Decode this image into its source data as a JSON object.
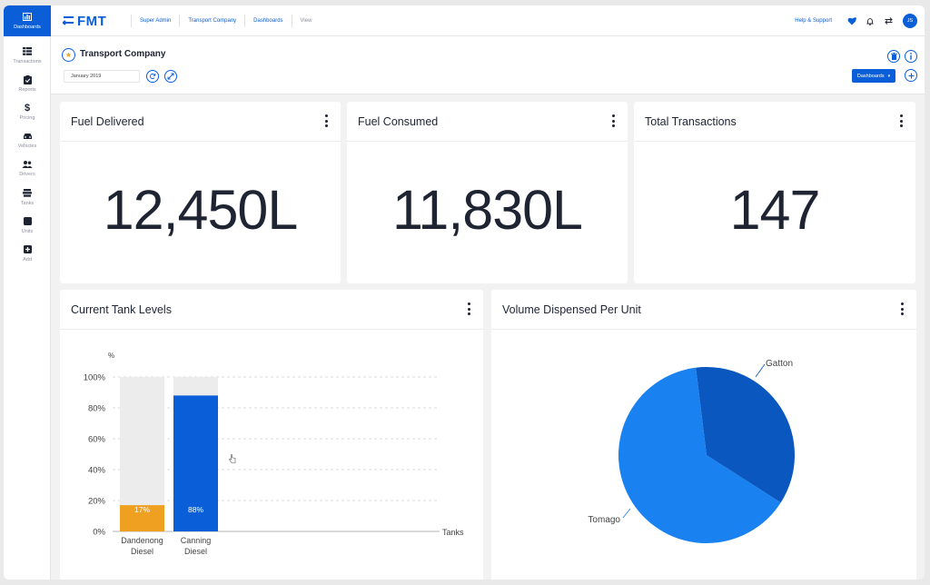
{
  "sidebar": {
    "items": [
      {
        "label": "Dashboards",
        "icon": "bar-chart-icon"
      },
      {
        "label": "Transactions",
        "icon": "list-icon"
      },
      {
        "label": "Reports",
        "icon": "clipboard-icon"
      },
      {
        "label": "Pricing",
        "icon": "dollar-icon"
      },
      {
        "label": "Vehicles",
        "icon": "car-icon"
      },
      {
        "label": "Drivers",
        "icon": "users-icon"
      },
      {
        "label": "Tanks",
        "icon": "layers-icon"
      },
      {
        "label": "Units",
        "icon": "square-icon"
      },
      {
        "label": "Add",
        "icon": "plus-square-icon"
      }
    ]
  },
  "topbar": {
    "logo": "FMT",
    "breadcrumbs": [
      "Super Admin",
      "Transport Company",
      "Dashboards",
      "View"
    ],
    "help": "Help & Support",
    "avatar": "JS"
  },
  "page": {
    "title": "Transport Company",
    "date": "January 2019",
    "dashboards_button": "Dashboards"
  },
  "cards": {
    "fuel_delivered": {
      "title": "Fuel Delivered",
      "value": "12,450L"
    },
    "fuel_consumed": {
      "title": "Fuel Consumed",
      "value": "11,830L"
    },
    "total_transactions": {
      "title": "Total Transactions",
      "value": "147"
    },
    "tank_levels": {
      "title": "Current Tank Levels"
    },
    "volume_per_unit": {
      "title": "Volume Dispensed Per Unit"
    }
  },
  "colors": {
    "accent": "#0a5fd8",
    "orange": "#f0a020",
    "pie_light": "#1a82f0",
    "pie_dark": "#0a57c0"
  },
  "chart_data": [
    {
      "type": "bar",
      "title": "Current Tank Levels",
      "ylabel": "%",
      "xlabel": "Tanks",
      "ylim": [
        0,
        100
      ],
      "yticks": [
        "0%",
        "20%",
        "40%",
        "60%",
        "80%",
        "100%"
      ],
      "categories": [
        "Dandenong Diesel",
        "Canning Diesel"
      ],
      "values": [
        17,
        88
      ],
      "labels": [
        "17%",
        "88%"
      ],
      "grid": true
    },
    {
      "type": "pie",
      "title": "Volume Dispensed Per Unit",
      "labels": [
        "Tomago",
        "Gatton"
      ],
      "values": [
        64,
        36
      ]
    }
  ]
}
